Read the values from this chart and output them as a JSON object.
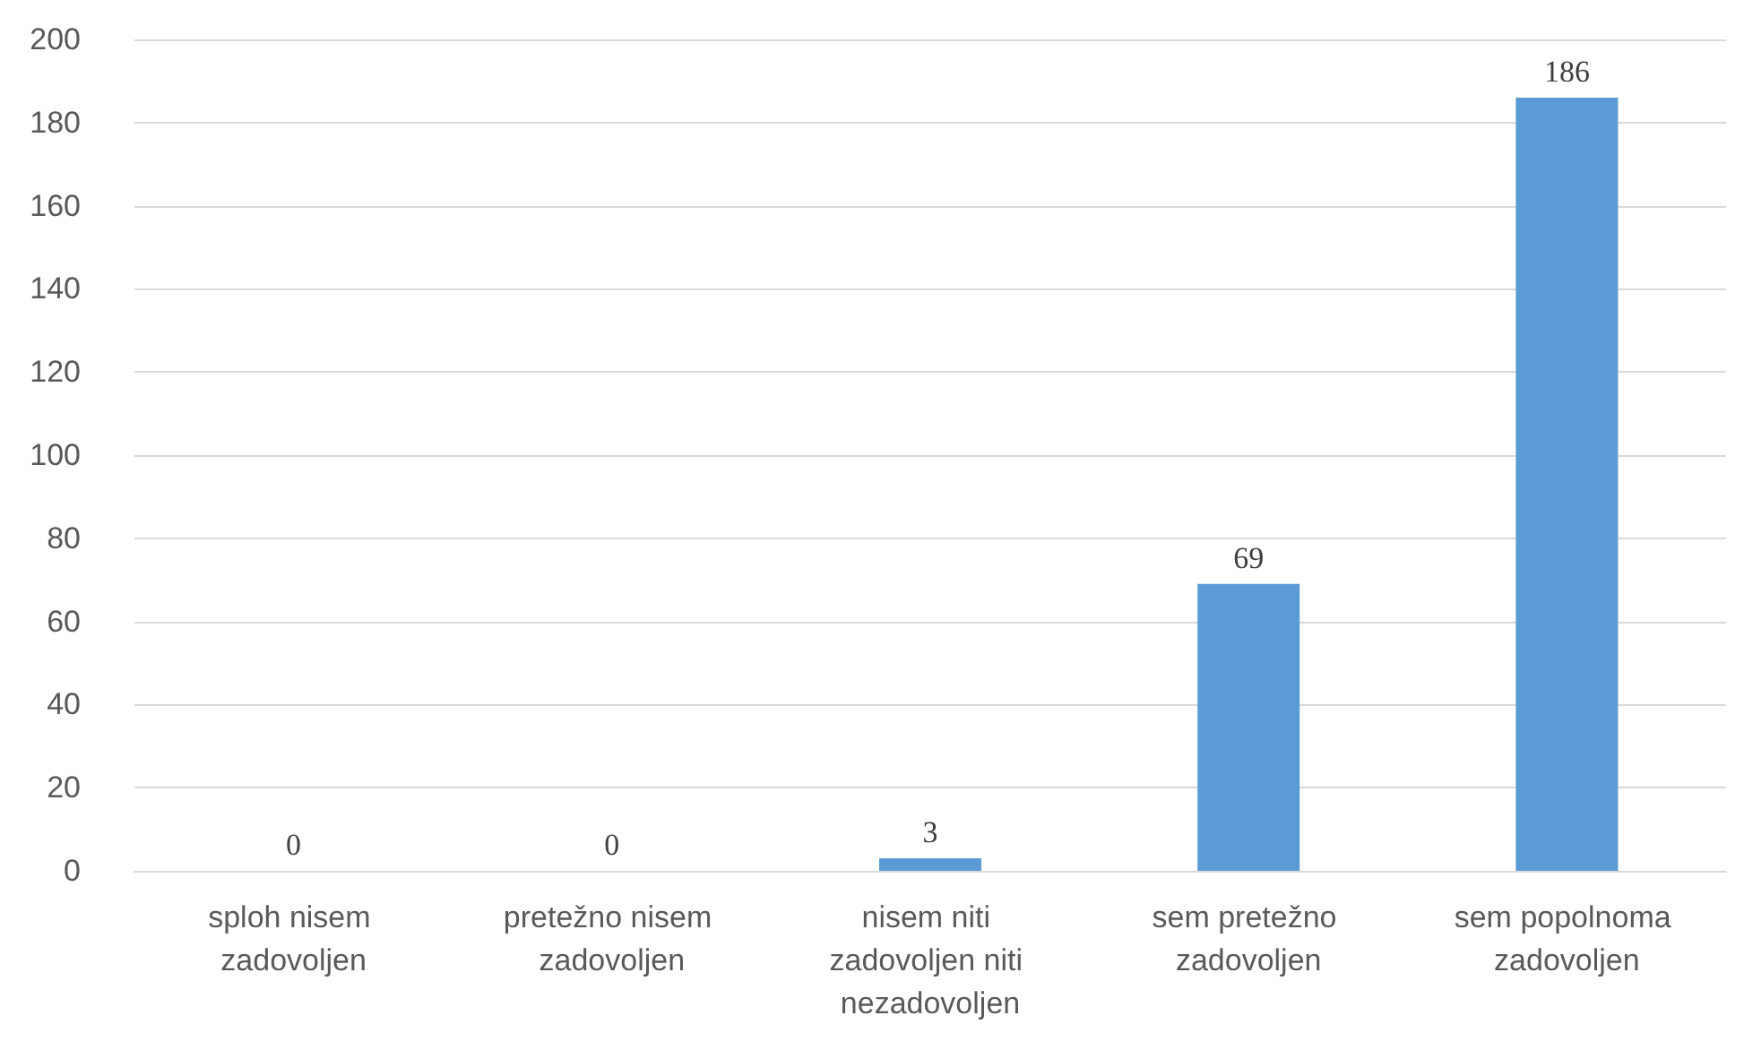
{
  "chart_data": {
    "type": "bar",
    "categories": [
      "sploh nisem zadovoljen",
      "pretežno nisem zadovoljen",
      "nisem niti zadovoljen niti nezadovoljen",
      "sem pretežno zadovoljen",
      "sem popolnoma zadovoljen"
    ],
    "values": [
      0,
      0,
      3,
      69,
      186
    ],
    "color": "#5b9bd5",
    "ylim": [
      0,
      200
    ],
    "yticks": [
      0,
      20,
      40,
      60,
      80,
      100,
      120,
      140,
      160,
      180,
      200
    ],
    "grid": "y",
    "data_labels": true
  }
}
